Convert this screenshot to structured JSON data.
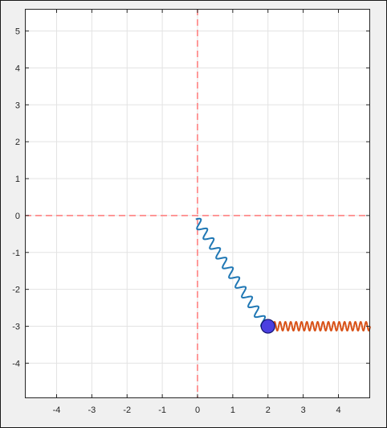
{
  "chart_data": {
    "type": "line",
    "title": "",
    "xlabel": "",
    "ylabel": "",
    "xlim": [
      -4.9,
      4.9
    ],
    "ylim": [
      -4.95,
      5.6
    ],
    "xticks": [
      -4,
      -3,
      -2,
      -1,
      0,
      1,
      2,
      3,
      4
    ],
    "yticks": [
      -4,
      -3,
      -2,
      -1,
      0,
      1,
      2,
      3,
      4,
      5
    ],
    "xtick_labels": [
      "-4",
      "-3",
      "-2",
      "-1",
      "0",
      "1",
      "2",
      "3",
      "4"
    ],
    "ytick_labels": [
      "-4",
      "-3",
      "-2",
      "-1",
      "0",
      "1",
      "2",
      "3",
      "4",
      "5"
    ],
    "grid": true,
    "reference_lines": [
      {
        "axis": "x",
        "value": 0,
        "style": "dashed",
        "color": "#ff8080"
      },
      {
        "axis": "y",
        "value": 0,
        "style": "dashed",
        "color": "#ff8080"
      }
    ],
    "series": [
      {
        "kind": "spring",
        "from": [
          -0.05,
          -0.1
        ],
        "to": [
          1.95,
          -3.0
        ],
        "coils": 11,
        "color": "#1f77b4"
      },
      {
        "kind": "spring",
        "from": [
          2.15,
          -3.0
        ],
        "to": [
          4.9,
          -3.0
        ],
        "coils": 18,
        "color": "#d95319"
      }
    ],
    "markers": [
      {
        "x": 2.0,
        "y": -3.0,
        "fill": "#4b3fe0",
        "edge": "#14146e"
      }
    ]
  },
  "colors": {
    "figure_bg": "#f0f0f0",
    "axes_bg": "#ffffff",
    "grid": "#e3e3e3",
    "axis_line": "#262626"
  }
}
